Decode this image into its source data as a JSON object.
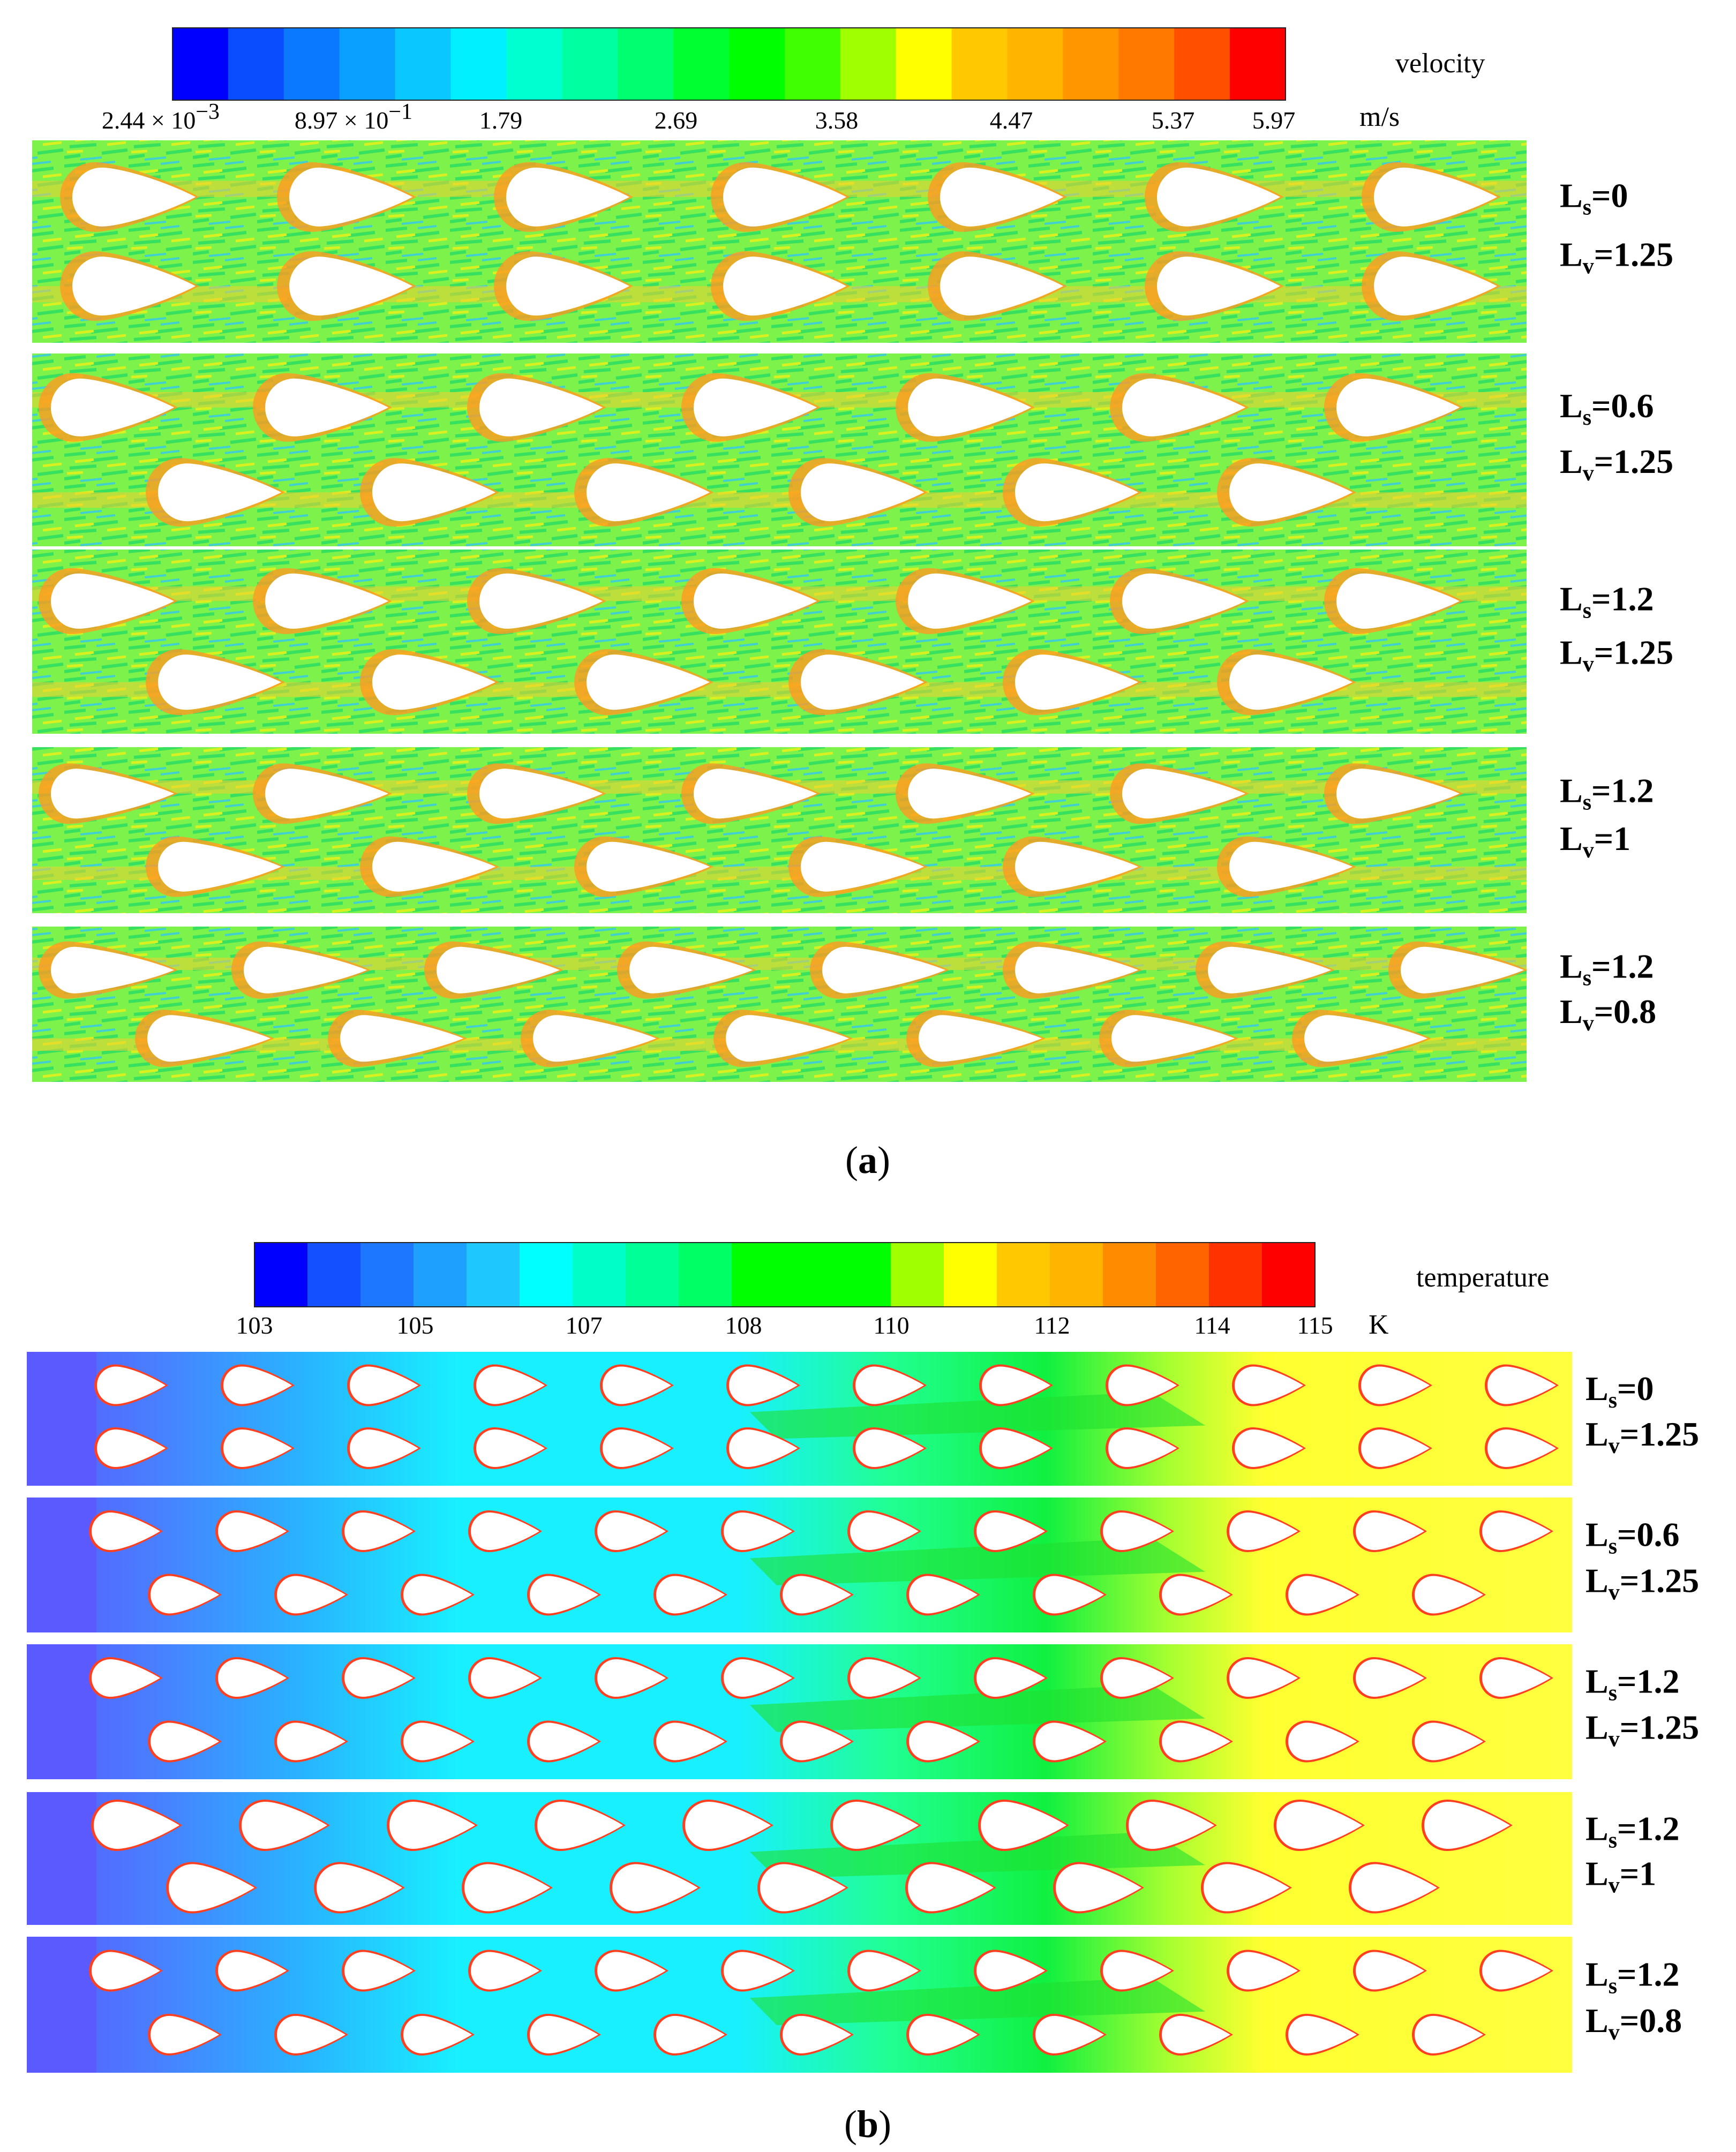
{
  "velocity_panel": {
    "colorbar": {
      "title": "velocity",
      "unit": "m/s",
      "tick_labels": [
        {
          "base": "2.44 × 10",
          "exp": "−3"
        },
        {
          "base": "8.97 × 10",
          "exp": "−1"
        },
        {
          "base": "1.79",
          "exp": ""
        },
        {
          "base": "2.69",
          "exp": ""
        },
        {
          "base": "3.58",
          "exp": ""
        },
        {
          "base": "4.47",
          "exp": ""
        },
        {
          "base": "5.37",
          "exp": ""
        },
        {
          "base": "5.97",
          "exp": ""
        }
      ],
      "colors": [
        "#0000ff",
        "#0a4cff",
        "#0a78ff",
        "#0aa0ff",
        "#0ac8ff",
        "#00f0ff",
        "#00ffd0",
        "#00ffa0",
        "#00ff70",
        "#00ff30",
        "#00ff00",
        "#40ff00",
        "#a0ff00",
        "#ffff00",
        "#ffc800",
        "#ffb400",
        "#ff9600",
        "#ff7800",
        "#ff5000",
        "#ff0000"
      ]
    },
    "cases": [
      {
        "ls": "0",
        "lv": "1.25"
      },
      {
        "ls": "0.6",
        "lv": "1.25"
      },
      {
        "ls": "1.2",
        "lv": "1.25"
      },
      {
        "ls": "1.2",
        "lv": "1"
      },
      {
        "ls": "1.2",
        "lv": "0.8"
      }
    ],
    "caption": {
      "open": "(",
      "letter": "a",
      "close": ")"
    }
  },
  "temperature_panel": {
    "colorbar": {
      "title": "temperature",
      "unit": "K",
      "tick_labels": [
        "103",
        "105",
        "107",
        "108",
        "110",
        "112",
        "114",
        "115"
      ],
      "colors": [
        "#0000ff",
        "#1450ff",
        "#1e78ff",
        "#1ea0ff",
        "#1ec8ff",
        "#00ffff",
        "#00ffc8",
        "#00ff96",
        "#00ff64",
        "#00ff00",
        "#00ff00",
        "#00ff00",
        "#a0ff00",
        "#ffff00",
        "#ffc800",
        "#ffb400",
        "#ff8c00",
        "#ff6400",
        "#ff3200",
        "#ff0000"
      ]
    },
    "cases": [
      {
        "ls": "0",
        "lv": "1.25"
      },
      {
        "ls": "0.6",
        "lv": "1.25"
      },
      {
        "ls": "1.2",
        "lv": "1.25"
      },
      {
        "ls": "1.2",
        "lv": "1"
      },
      {
        "ls": "1.2",
        "lv": "0.8"
      }
    ],
    "caption": {
      "open": "(",
      "letter": "b",
      "close": ")"
    }
  },
  "param_symbols": {
    "ls_main": "L",
    "ls_sub": "s",
    "lv_main": "L",
    "lv_sub": "v"
  }
}
